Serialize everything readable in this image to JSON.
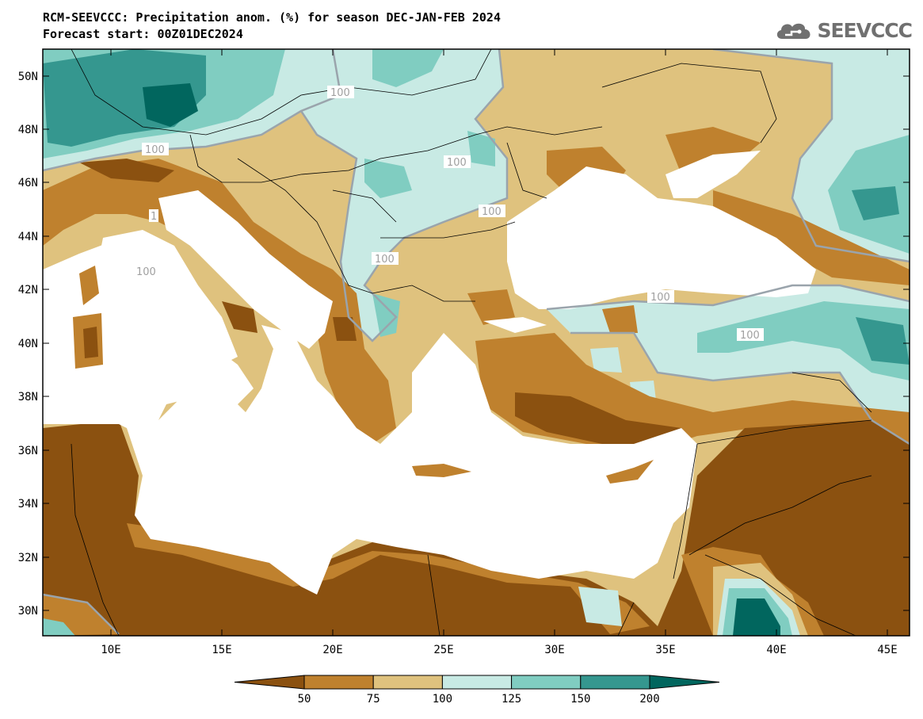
{
  "header": {
    "title_line1": "RCM-SEEVCCC: Precipitation anom. (%) for season DEC-JAN-FEB 2024",
    "title_line2": "Forecast start: 00Z01DEC2024",
    "logo_text": "SEEVCCC"
  },
  "axes": {
    "lon_ticks": [
      "10E",
      "15E",
      "20E",
      "25E",
      "30E",
      "35E",
      "40E",
      "45E"
    ],
    "lat_ticks": [
      "30N",
      "32N",
      "34N",
      "36N",
      "38N",
      "40N",
      "42N",
      "44N",
      "46N",
      "48N",
      "50N"
    ]
  },
  "contour_labels": [
    "100",
    "100",
    "100",
    "100",
    "100",
    "100",
    "100",
    "100",
    "1"
  ],
  "colorbar": {
    "ticks": [
      "50",
      "75",
      "100",
      "125",
      "150",
      "200"
    ],
    "colors": [
      "#8b5110",
      "#bf812e",
      "#dfc27e",
      "#c8eae4",
      "#80cdc1",
      "#35978f",
      "#01665e"
    ]
  },
  "colors": {
    "land_default": "#dfc27e",
    "sea": "#ffffff",
    "contour_line": "#9aa4ac"
  }
}
